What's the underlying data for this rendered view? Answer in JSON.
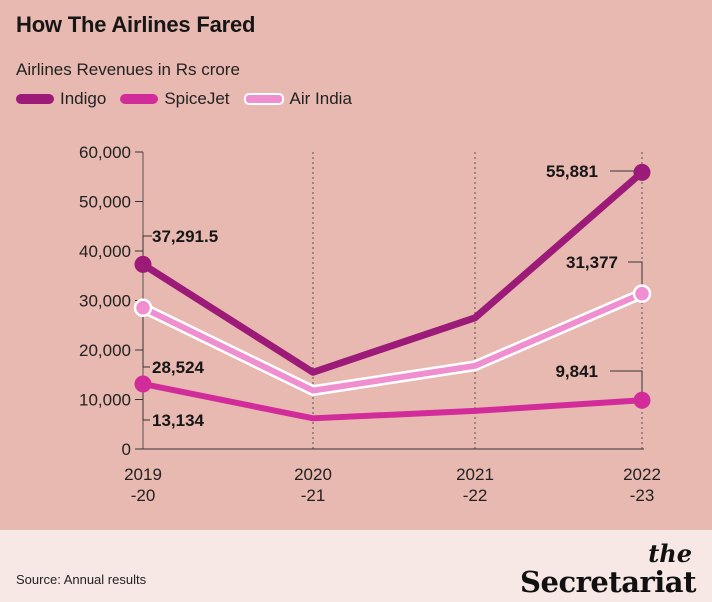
{
  "title": "How The Airlines Fared",
  "subtitle": "Airlines Revenues in Rs crore",
  "source": "Source: Annual results",
  "brand": {
    "prefix": "the",
    "name": "Secretariat"
  },
  "chart_data": {
    "type": "line",
    "categories": [
      "2019\n-20",
      "2020\n-21",
      "2021\n-22",
      "2022\n-23"
    ],
    "ylim": [
      0,
      60000
    ],
    "yticks": [
      "0",
      "10,000",
      "20,000",
      "30,000",
      "40,000",
      "50,000",
      "60,000"
    ],
    "grid": "vertical dashed",
    "legend": "top-left",
    "series": [
      {
        "name": "Indigo",
        "color": "#9c1a78",
        "values": [
          37291.5,
          15500,
          26500,
          55881
        ],
        "markers": [
          0,
          3
        ],
        "labels": [
          "37,291.5",
          "",
          "",
          "55,881"
        ]
      },
      {
        "name": "SpiceJet",
        "color": "#d22c9a",
        "values": [
          13134,
          6200,
          7700,
          9841
        ],
        "markers": [
          0,
          3
        ],
        "labels": [
          "13,134",
          "",
          "",
          "9,841"
        ]
      },
      {
        "name": "Air India",
        "color": "#f08fd0",
        "values": [
          28524,
          11800,
          16800,
          31377
        ],
        "markers": [
          0,
          3
        ],
        "labels": [
          "28,524",
          "",
          "",
          "31,377"
        ]
      }
    ]
  }
}
